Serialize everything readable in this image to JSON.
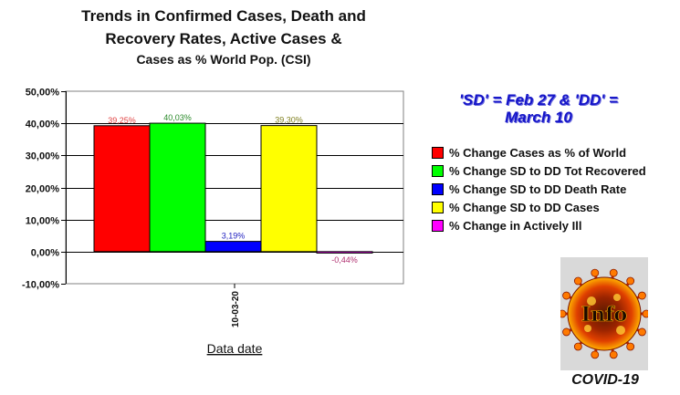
{
  "chart_data": {
    "type": "bar",
    "title_lines": [
      "Trends in Confirmed Cases, Death and",
      "Recovery Rates, Active Cases &",
      "Cases as % World Pop. (CSI)"
    ],
    "xlabel": "Data date",
    "categories": [
      "10-03-20"
    ],
    "ylim": [
      -10,
      50
    ],
    "yticks": [
      "50,00%",
      "40,00%",
      "30,00%",
      "20,00%",
      "10,00%",
      "0,00%",
      "-10,00%"
    ],
    "ytick_values": [
      50,
      40,
      30,
      20,
      10,
      0,
      -10
    ],
    "grid": true,
    "legend_position": "right",
    "series": [
      {
        "name": "% Change Cases as % of World",
        "values": [
          39.25
        ],
        "label": "39,25%",
        "color": "#ff0000",
        "label_color": "#e04040"
      },
      {
        "name": "% Change SD to DD Tot Recovered",
        "values": [
          40.03
        ],
        "label": "40,03%",
        "color": "#00ff00",
        "label_color": "#2a8a2a"
      },
      {
        "name": "% Change SD to DD Death Rate",
        "values": [
          3.19
        ],
        "label": "3,19%",
        "color": "#0000ff",
        "label_color": "#2020c0"
      },
      {
        "name": "% Change SD to DD Cases",
        "values": [
          39.3
        ],
        "label": "39,30%",
        "color": "#ffff00",
        "label_color": "#808020"
      },
      {
        "name": "% Change in Actively Ill",
        "values": [
          -0.44
        ],
        "label": "-0,44%",
        "color": "#ff00ff",
        "label_color": "#b03070"
      }
    ]
  },
  "note": {
    "line1": "'SD' = Feb 27 & 'DD' =",
    "line2": "March 10"
  },
  "badge": {
    "icon": "covid-virus-info-icon",
    "text": "Info",
    "caption": "COVID-19"
  }
}
